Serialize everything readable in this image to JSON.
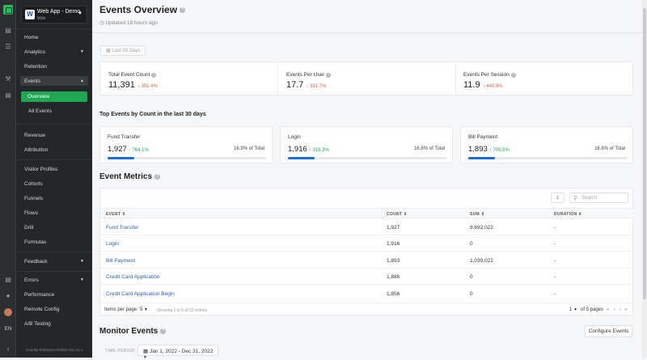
{
  "app": {
    "name": "Web App - Demo",
    "sub": "Web"
  },
  "sidebar": {
    "items": [
      {
        "label": "Home"
      },
      {
        "label": "Analytics"
      },
      {
        "label": "Retention"
      },
      {
        "label": "Events"
      },
      {
        "label": "Overview"
      },
      {
        "label": "All Events"
      },
      {
        "label": "Revenue"
      },
      {
        "label": "Attribution"
      },
      {
        "label": "Visitor Profiles"
      },
      {
        "label": "Cohorts"
      },
      {
        "label": "Funnels"
      },
      {
        "label": "Flows"
      },
      {
        "label": "Drill"
      },
      {
        "label": "Formulas"
      },
      {
        "label": "Feedback"
      },
      {
        "label": "Errors"
      },
      {
        "label": "Performance"
      },
      {
        "label": "Remote Config"
      },
      {
        "label": "A/B Testing"
      }
    ],
    "lang": "EN",
    "footer": "Countly Enterprise Edition v21.11.1"
  },
  "header": {
    "title": "Events Overview",
    "updated": "Updated 18 hours ago"
  },
  "date_range": "Last 30 Days",
  "kpis": [
    {
      "label": "Total Event Count",
      "value": "11,391",
      "change": "301.4%"
    },
    {
      "label": "Events Per User",
      "value": "17.7",
      "change": "331.7%"
    },
    {
      "label": "Events Per Session",
      "value": "11.9",
      "change": "440.9%"
    }
  ],
  "top_events": {
    "title": "Top Events by Count in the last 30 days",
    "items": [
      {
        "name": "Fund Transfer",
        "value": "1,927",
        "change": "764.1%",
        "share": "16.9% of Total",
        "share_pct": 16.9
      },
      {
        "name": "Login",
        "value": "1,916",
        "change": "319.3%",
        "share": "16.8% of Total",
        "share_pct": 16.8
      },
      {
        "name": "Bill Payment",
        "value": "1,893",
        "change": "705.5%",
        "share": "16.6% of Total",
        "share_pct": 16.6
      }
    ]
  },
  "metrics": {
    "title": "Event Metrics",
    "search_placeholder": "Search",
    "columns": [
      "EVENT",
      "COUNT",
      "SUM",
      "DURATION"
    ],
    "rows": [
      {
        "event": "Fund Transfer",
        "count": "1,927",
        "sum": "9,692,022",
        "duration": "-"
      },
      {
        "event": "Login",
        "count": "1,916",
        "sum": "0",
        "duration": "-"
      },
      {
        "event": "Bill Payment",
        "count": "1,893",
        "sum": "1,039,022",
        "duration": "-"
      },
      {
        "event": "Credit Card Application",
        "count": "1,886",
        "sum": "0",
        "duration": "-"
      },
      {
        "event": "Credit Card Application Begin",
        "count": "1,856",
        "sum": "0",
        "duration": "-"
      }
    ],
    "items_per_page_label": "Items per page:",
    "items_per_page": "5",
    "showing": "Showing 1 to 5 of 22 entries",
    "page": "1",
    "of_pages": "of 5 pages"
  },
  "monitor": {
    "title": "Monitor Events",
    "configure": "Configure Events",
    "time_period_label": "TIME PERIOD",
    "time_period": "Jan 1, 2022 - Dec 31, 2022"
  },
  "colors": {
    "accent": "#1ea854",
    "bar": "#1a6de0",
    "down": "#e45a3b",
    "sidebar": "#242628"
  }
}
